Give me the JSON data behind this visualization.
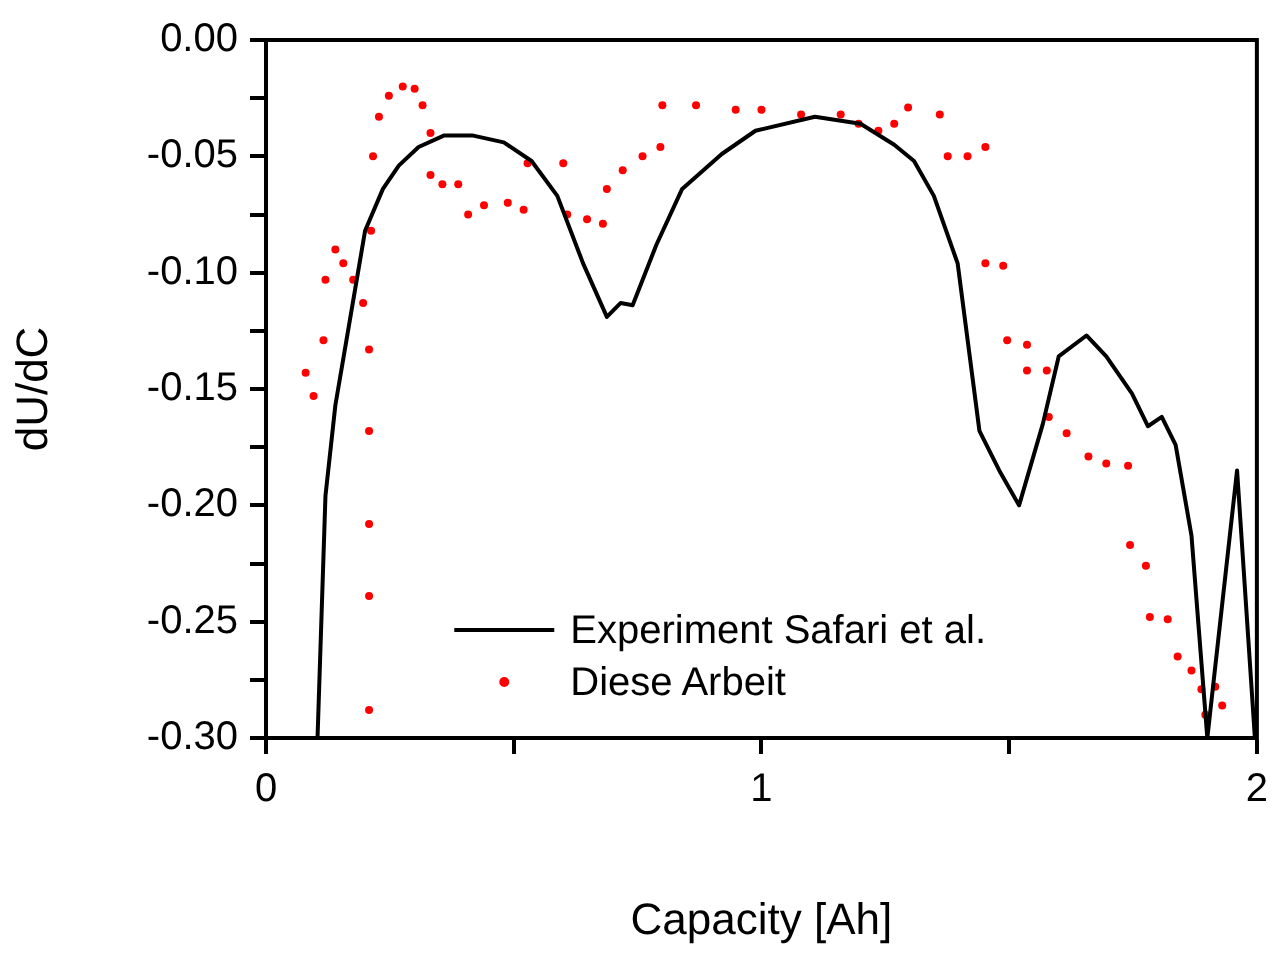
{
  "chart_data": {
    "type": "line",
    "xlabel": "Capacity [Ah]",
    "ylabel": "dU/dC",
    "xlim": [
      0,
      2
    ],
    "ylim": [
      -0.3,
      0
    ],
    "xticks": [
      0,
      {
        "value": 0.5,
        "label": null
      },
      1,
      {
        "value": 1.5,
        "label": null
      },
      2
    ],
    "yticks": [
      {
        "value": 0,
        "label": "0.00"
      },
      {
        "value": -0.025,
        "label": null
      },
      {
        "value": -0.05,
        "label": "-0.05"
      },
      {
        "value": -0.075,
        "label": null
      },
      {
        "value": -0.1,
        "label": "-0.10"
      },
      {
        "value": -0.125,
        "label": null
      },
      {
        "value": -0.15,
        "label": "-0.15"
      },
      {
        "value": -0.175,
        "label": null
      },
      {
        "value": -0.2,
        "label": "-0.20"
      },
      {
        "value": -0.225,
        "label": null
      },
      {
        "value": -0.25,
        "label": "-0.25"
      },
      {
        "value": -0.275,
        "label": null
      },
      {
        "value": -0.3,
        "label": "-0.30"
      }
    ],
    "legend": "bottom",
    "series": [
      {
        "name": "Experiment Safari et al.",
        "color": "#000000",
        "type": "line",
        "marker": "none",
        "line_style": "solid",
        "x": [
          0.104,
          0.12,
          0.14,
          0.168,
          0.2,
          0.236,
          0.268,
          0.308,
          0.36,
          0.416,
          0.48,
          0.536,
          0.588,
          0.64,
          0.688,
          0.716,
          0.74,
          0.788,
          0.84,
          0.92,
          0.988,
          1.108,
          1.2,
          1.268,
          1.308,
          1.348,
          1.396,
          1.44,
          1.48,
          1.52,
          1.568,
          1.6,
          1.656,
          1.696,
          1.748,
          1.78,
          1.808,
          1.836,
          1.868,
          1.9,
          1.96,
          1.996
        ],
        "values": [
          -0.3,
          -0.196,
          -0.157,
          -0.122,
          -0.082,
          -0.064,
          -0.054,
          -0.046,
          -0.041,
          -0.041,
          -0.044,
          -0.052,
          -0.067,
          -0.096,
          -0.119,
          -0.113,
          -0.114,
          -0.088,
          -0.064,
          -0.049,
          -0.039,
          -0.033,
          -0.036,
          -0.045,
          -0.052,
          -0.067,
          -0.096,
          -0.168,
          -0.185,
          -0.2,
          -0.165,
          -0.136,
          -0.127,
          -0.136,
          -0.152,
          -0.166,
          -0.162,
          -0.174,
          -0.213,
          -0.3,
          -0.185,
          -0.3
        ]
      },
      {
        "name": "Diese Arbeit",
        "color": "#ff0000",
        "type": "scatter",
        "marker": "circle",
        "x": [
          0.08,
          0.096,
          0.116,
          0.12,
          0.14,
          0.156,
          0.176,
          0.196,
          0.208,
          0.208,
          0.208,
          0.208,
          0.208,
          0.212,
          0.216,
          0.228,
          0.248,
          0.276,
          0.3,
          0.316,
          0.332,
          0.332,
          0.356,
          0.388,
          0.408,
          0.44,
          0.488,
          0.52,
          0.528,
          0.6,
          0.608,
          0.648,
          0.68,
          0.688,
          0.72,
          0.76,
          0.796,
          0.8,
          0.868,
          0.948,
          1.0,
          1.08,
          1.16,
          1.196,
          1.236,
          1.268,
          1.296,
          1.36,
          1.376,
          1.416,
          1.452,
          1.452,
          1.488,
          1.496,
          1.536,
          1.536,
          1.576,
          1.58,
          1.616,
          1.66,
          1.696,
          1.74,
          1.744,
          1.776,
          1.784,
          1.82,
          1.84,
          1.868,
          1.888,
          1.896,
          1.916,
          1.93
        ],
        "values": [
          -0.143,
          -0.153,
          -0.129,
          -0.103,
          -0.09,
          -0.096,
          -0.103,
          -0.113,
          -0.133,
          -0.168,
          -0.208,
          -0.239,
          -0.288,
          -0.082,
          -0.05,
          -0.033,
          -0.024,
          -0.02,
          -0.021,
          -0.028,
          -0.04,
          -0.058,
          -0.062,
          -0.062,
          -0.075,
          -0.071,
          -0.07,
          -0.073,
          -0.053,
          -0.053,
          -0.075,
          -0.077,
          -0.079,
          -0.064,
          -0.056,
          -0.05,
          -0.046,
          -0.028,
          -0.028,
          -0.03,
          -0.03,
          -0.032,
          -0.032,
          -0.036,
          -0.039,
          -0.036,
          -0.029,
          -0.032,
          -0.05,
          -0.05,
          -0.046,
          -0.096,
          -0.097,
          -0.129,
          -0.131,
          -0.142,
          -0.142,
          -0.162,
          -0.169,
          -0.179,
          -0.182,
          -0.183,
          -0.217,
          -0.226,
          -0.248,
          -0.249,
          -0.265,
          -0.271,
          -0.279,
          -0.29,
          -0.278,
          -0.286
        ]
      }
    ]
  }
}
